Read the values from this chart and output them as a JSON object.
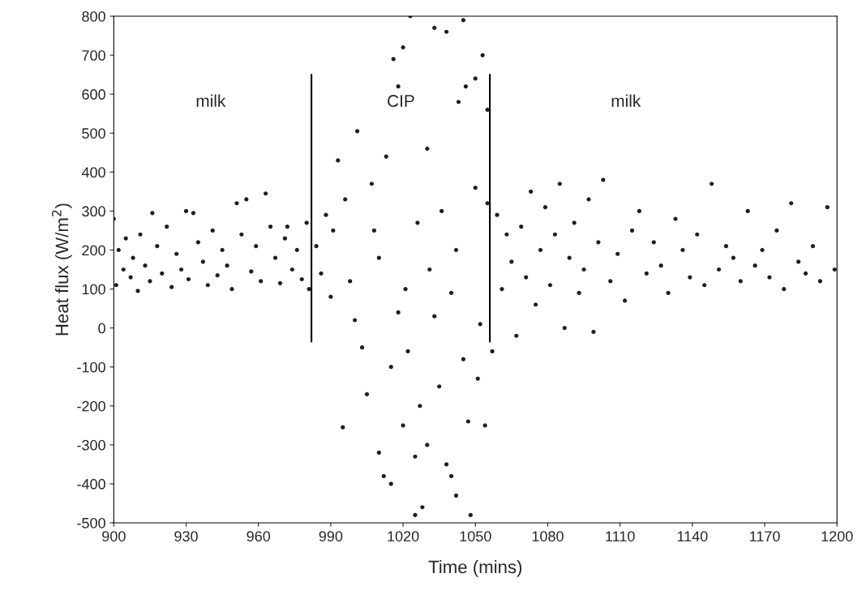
{
  "chart_data": {
    "type": "scatter",
    "xlabel": "Time (mins)",
    "ylabel": "Heat flux (W/m$^{2}$)",
    "xlim": [
      900,
      1200
    ],
    "xticks": [
      900,
      930,
      960,
      990,
      1020,
      1050,
      1080,
      1110,
      1140,
      1170,
      1200
    ],
    "ylim": [
      -500,
      800
    ],
    "yticks": [
      -500,
      -400,
      -300,
      -200,
      -100,
      0,
      100,
      200,
      300,
      400,
      500,
      600,
      700,
      800
    ],
    "grid": false,
    "series": [
      {
        "marker": "circle",
        "color": "#1e1e1e",
        "x": [
          900,
          901,
          902,
          904,
          905,
          907,
          908,
          910,
          911,
          913,
          915,
          916,
          918,
          920,
          922,
          924,
          926,
          928,
          930,
          931,
          933,
          935,
          937,
          939,
          941,
          943,
          945,
          947,
          949,
          951,
          953,
          955,
          957,
          959,
          961,
          963,
          965,
          967,
          969,
          971,
          972,
          974,
          976,
          978,
          980,
          981,
          984,
          986,
          988,
          990,
          991,
          993,
          995,
          996,
          998,
          1000,
          1001,
          1003,
          1005,
          1007,
          1008,
          1010,
          1010,
          1012,
          1013,
          1015,
          1015,
          1016,
          1018,
          1018,
          1020,
          1020,
          1021,
          1022,
          1023,
          1025,
          1025,
          1026,
          1027,
          1028,
          1030,
          1030,
          1031,
          1033,
          1033,
          1035,
          1036,
          1038,
          1038,
          1040,
          1040,
          1042,
          1042,
          1043,
          1045,
          1045,
          1046,
          1047,
          1048,
          1050,
          1050,
          1051,
          1052,
          1053,
          1054,
          1055,
          1055,
          1057,
          1059,
          1061,
          1063,
          1065,
          1067,
          1069,
          1071,
          1073,
          1075,
          1077,
          1079,
          1081,
          1083,
          1085,
          1087,
          1089,
          1091,
          1093,
          1095,
          1097,
          1099,
          1101,
          1103,
          1106,
          1109,
          1112,
          1115,
          1118,
          1121,
          1124,
          1127,
          1130,
          1133,
          1136,
          1139,
          1142,
          1145,
          1148,
          1151,
          1154,
          1157,
          1160,
          1163,
          1166,
          1169,
          1172,
          1175,
          1178,
          1181,
          1184,
          1187,
          1190,
          1193,
          1196,
          1199
        ],
        "values": [
          280,
          110,
          200,
          150,
          230,
          130,
          180,
          95,
          240,
          160,
          120,
          295,
          210,
          140,
          260,
          105,
          190,
          150,
          300,
          125,
          295,
          220,
          170,
          110,
          250,
          135,
          200,
          160,
          100,
          320,
          240,
          330,
          145,
          210,
          120,
          345,
          260,
          180,
          115,
          230,
          260,
          150,
          200,
          125,
          270,
          100,
          210,
          140,
          290,
          80,
          250,
          430,
          -255,
          330,
          120,
          20,
          505,
          -50,
          -170,
          370,
          250,
          -320,
          180,
          -380,
          440,
          -100,
          -400,
          690,
          40,
          620,
          -250,
          720,
          100,
          -60,
          800,
          -330,
          -480,
          270,
          -200,
          -460,
          460,
          -300,
          150,
          30,
          770,
          -150,
          300,
          -350,
          760,
          90,
          -380,
          200,
          -430,
          580,
          -80,
          790,
          620,
          -240,
          -480,
          360,
          640,
          -130,
          10,
          700,
          -250,
          560,
          320,
          -60,
          290,
          100,
          240,
          170,
          -20,
          260,
          130,
          350,
          60,
          200,
          310,
          110,
          240,
          370,
          0,
          180,
          270,
          90,
          150,
          330,
          -10,
          220,
          380,
          120,
          190,
          70,
          250,
          300,
          140,
          220,
          160,
          90,
          280,
          200,
          130,
          240,
          110,
          370,
          150,
          210,
          180,
          120,
          300,
          160,
          200,
          130,
          250,
          100,
          320,
          170,
          140,
          210,
          120,
          310,
          150
        ]
      },
      {
        "type": "line",
        "color": "#000000",
        "x": [
          982,
          982
        ],
        "values": [
          650,
          -35
        ]
      },
      {
        "type": "line",
        "color": "#000000",
        "x": [
          1056,
          1056
        ],
        "values": [
          650,
          -35
        ]
      }
    ],
    "annotations": [
      "milk",
      "CIP",
      "milk"
    ]
  }
}
